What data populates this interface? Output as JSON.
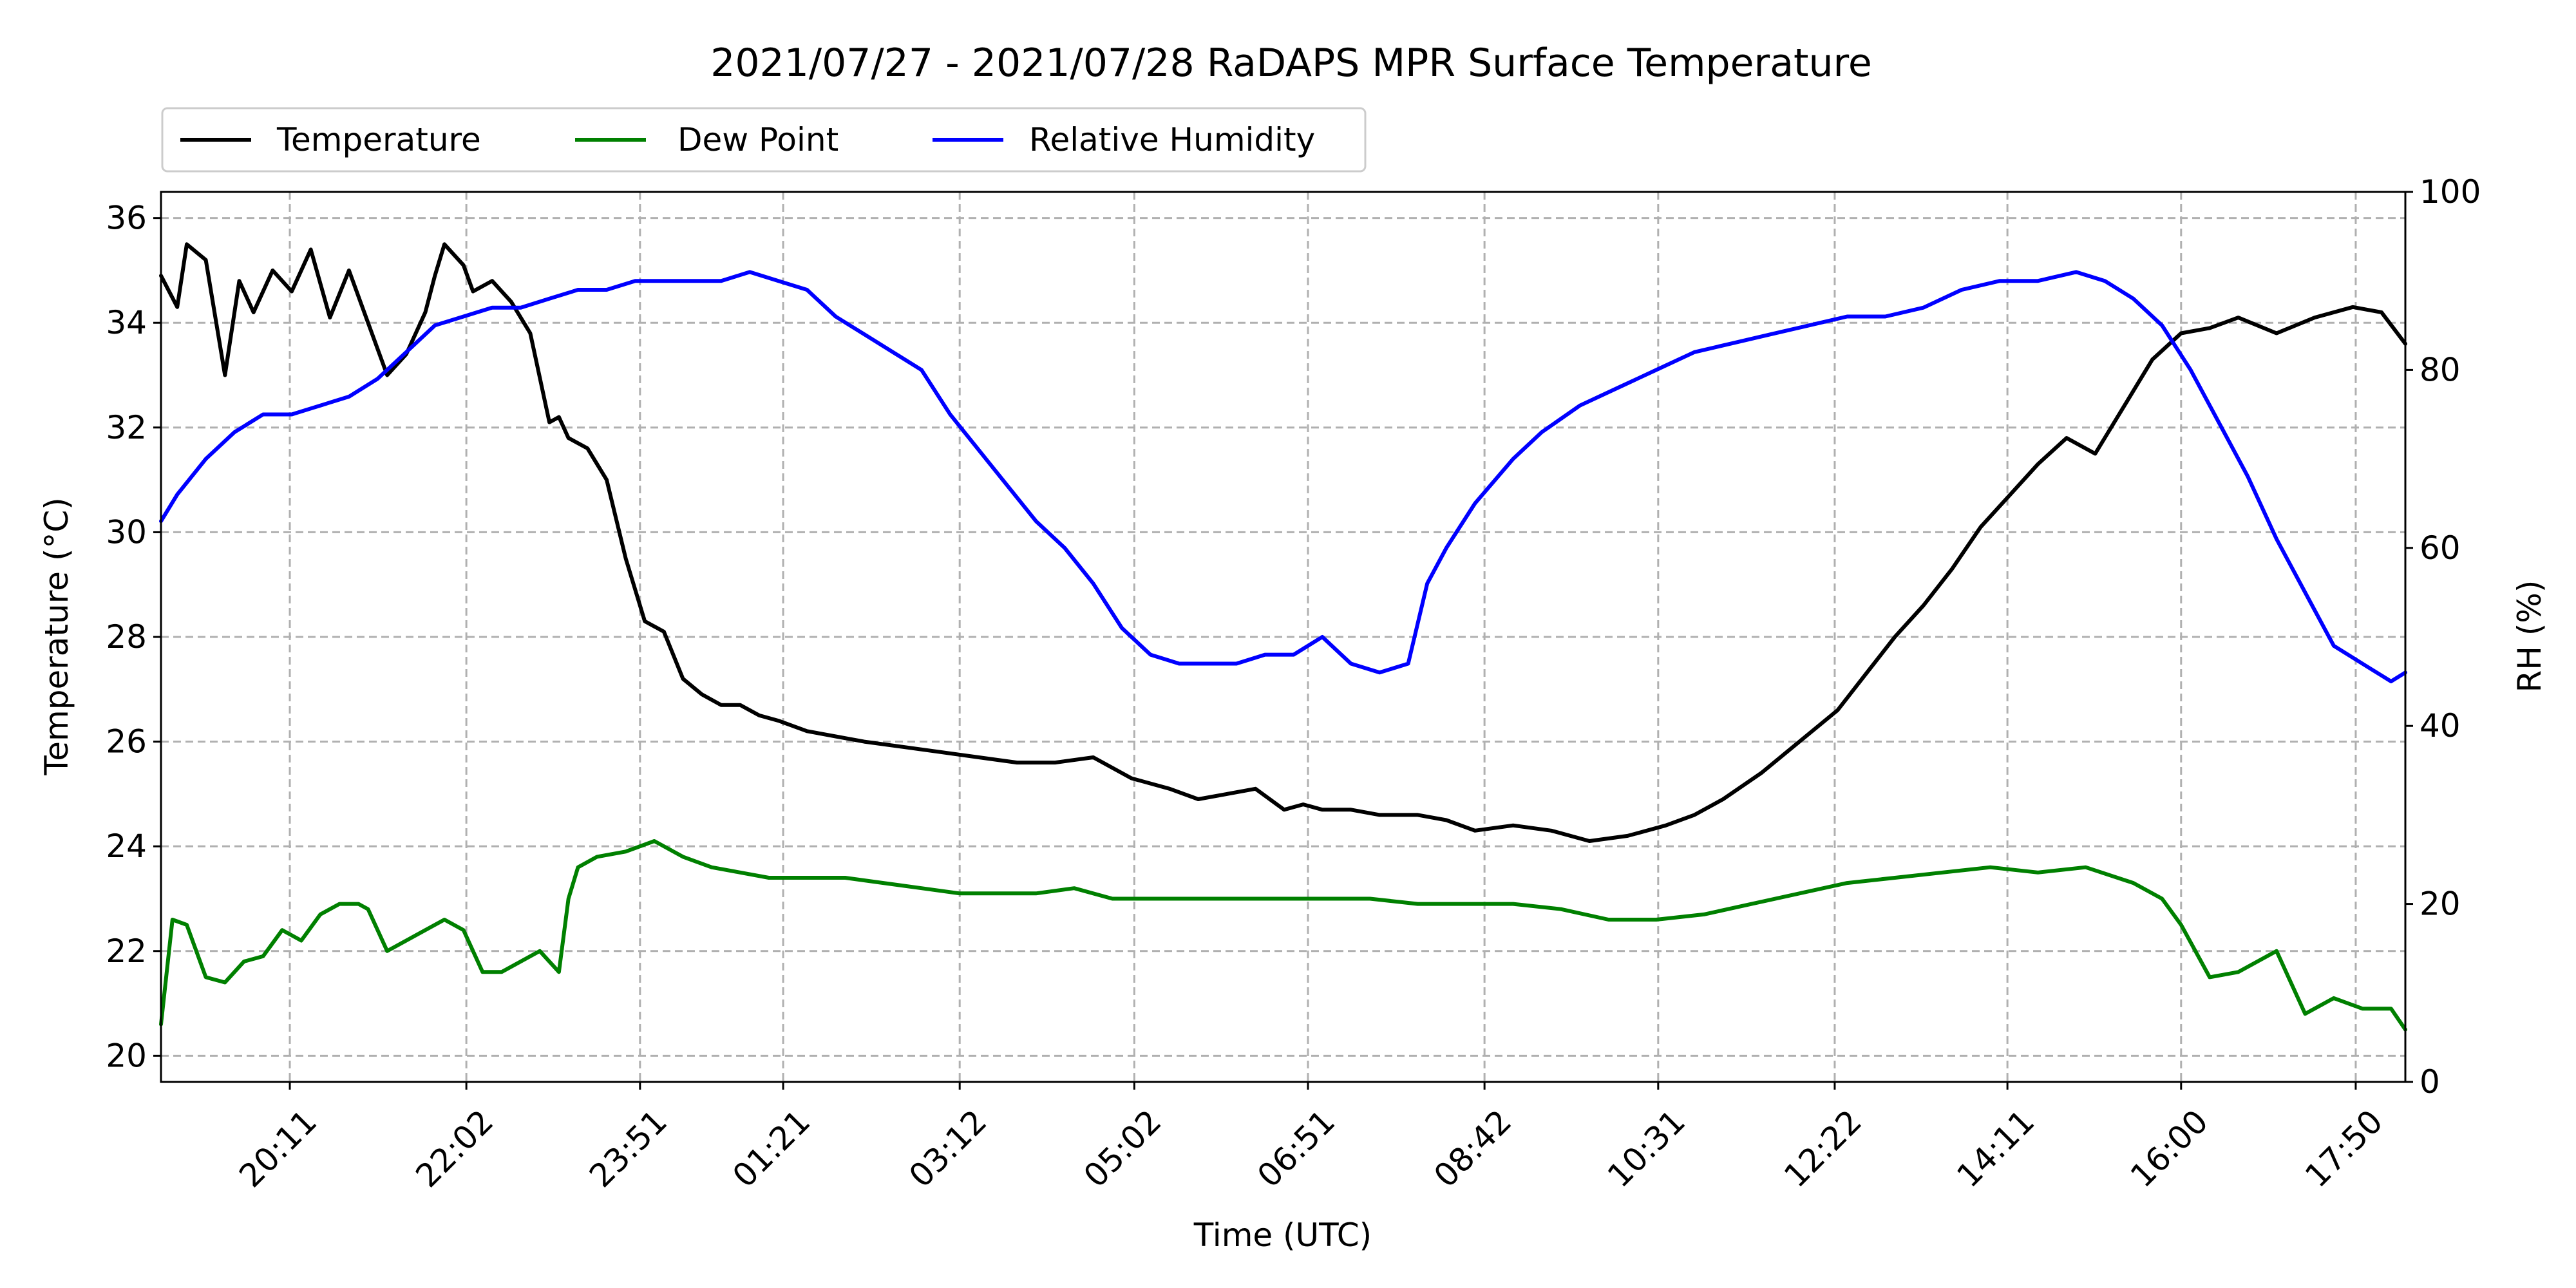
{
  "chart_data": {
    "type": "line",
    "title": "2021/07/27 - 2021/07/28 RaDAPS MPR Surface Temperature",
    "xlabel": "Time (UTC)",
    "ylabel": "Temperature ($^\\circ$C)",
    "ylabel_display": "Temperature (°C)",
    "y2label": "RH (%)",
    "x_tick_labels": [
      "20:11",
      "22:02",
      "23:51",
      "01:21",
      "03:12",
      "05:02",
      "06:51",
      "08:42",
      "10:31",
      "12:22",
      "14:11",
      "16:00",
      "17:50"
    ],
    "x_tick_hours": [
      20.18,
      22.03,
      23.85,
      25.35,
      27.2,
      29.03,
      30.85,
      32.7,
      34.52,
      36.37,
      38.18,
      40.0,
      41.83
    ],
    "xlim_hours": [
      18.83,
      42.35
    ],
    "ylim": [
      19.5,
      36.5
    ],
    "yticks": [
      20,
      22,
      24,
      26,
      28,
      30,
      32,
      34,
      36
    ],
    "y2lim": [
      0,
      100
    ],
    "y2ticks": [
      0,
      20,
      40,
      60,
      80,
      100
    ],
    "grid": true,
    "legend_placement": "top-left, above plot",
    "series": [
      {
        "name": "Temperature",
        "axis": "left",
        "color": "#000000",
        "x_hours": [
          18.83,
          19.0,
          19.1,
          19.3,
          19.5,
          19.65,
          19.8,
          20.0,
          20.2,
          20.4,
          20.6,
          20.8,
          21.0,
          21.2,
          21.4,
          21.6,
          21.7,
          21.8,
          22.0,
          22.1,
          22.3,
          22.5,
          22.7,
          22.9,
          23.0,
          23.1,
          23.3,
          23.5,
          23.7,
          23.9,
          24.1,
          24.3,
          24.5,
          24.7,
          24.9,
          25.1,
          25.3,
          25.6,
          25.9,
          26.2,
          26.6,
          27.0,
          27.4,
          27.8,
          28.2,
          28.6,
          29.0,
          29.4,
          29.7,
          30.0,
          30.3,
          30.6,
          30.8,
          31.0,
          31.3,
          31.6,
          32.0,
          32.3,
          32.6,
          33.0,
          33.4,
          33.8,
          34.2,
          34.6,
          34.9,
          35.2,
          35.6,
          36.0,
          36.4,
          36.7,
          37.0,
          37.3,
          37.6,
          37.9,
          38.2,
          38.5,
          38.8,
          39.1,
          39.4,
          39.7,
          40.0,
          40.3,
          40.6,
          41.0,
          41.4,
          41.8,
          42.1,
          42.35
        ],
        "values": [
          34.9,
          34.3,
          35.5,
          35.2,
          33.0,
          34.8,
          34.2,
          35.0,
          34.6,
          35.4,
          34.1,
          35.0,
          34.0,
          33.0,
          33.4,
          34.2,
          34.9,
          35.5,
          35.1,
          34.6,
          34.8,
          34.4,
          33.8,
          32.1,
          32.2,
          31.8,
          31.6,
          31.0,
          29.5,
          28.3,
          28.1,
          27.2,
          26.9,
          26.7,
          26.7,
          26.5,
          26.4,
          26.2,
          26.1,
          26.0,
          25.9,
          25.8,
          25.7,
          25.6,
          25.6,
          25.7,
          25.3,
          25.1,
          24.9,
          25.0,
          25.1,
          24.7,
          24.8,
          24.7,
          24.7,
          24.6,
          24.6,
          24.5,
          24.3,
          24.4,
          24.3,
          24.1,
          24.2,
          24.4,
          24.6,
          24.9,
          25.4,
          26.0,
          26.6,
          27.3,
          28.0,
          28.6,
          29.3,
          30.1,
          30.7,
          31.3,
          31.8,
          31.5,
          32.4,
          33.3,
          33.8,
          33.9,
          34.1,
          33.8,
          34.1,
          34.3,
          34.2,
          33.6
        ]
      },
      {
        "name": "Dew Point",
        "axis": "left",
        "color": "#008000",
        "x_hours": [
          18.83,
          18.95,
          19.1,
          19.3,
          19.5,
          19.7,
          19.9,
          20.1,
          20.3,
          20.5,
          20.7,
          20.9,
          21.0,
          21.2,
          21.4,
          21.6,
          21.8,
          22.0,
          22.2,
          22.4,
          22.6,
          22.8,
          23.0,
          23.1,
          23.2,
          23.4,
          23.7,
          24.0,
          24.3,
          24.6,
          24.9,
          25.2,
          25.6,
          26.0,
          26.4,
          26.8,
          27.2,
          27.6,
          28.0,
          28.4,
          28.8,
          29.2,
          29.6,
          30.0,
          30.5,
          31.0,
          31.5,
          32.0,
          32.5,
          33.0,
          33.5,
          34.0,
          34.5,
          35.0,
          35.5,
          36.0,
          36.5,
          37.0,
          37.5,
          38.0,
          38.5,
          39.0,
          39.5,
          39.8,
          40.0,
          40.3,
          40.6,
          41.0,
          41.3,
          41.6,
          41.9,
          42.2,
          42.35
        ],
        "values": [
          20.6,
          22.6,
          22.5,
          21.5,
          21.4,
          21.8,
          21.9,
          22.4,
          22.2,
          22.7,
          22.9,
          22.9,
          22.8,
          22.0,
          22.2,
          22.4,
          22.6,
          22.4,
          21.6,
          21.6,
          21.8,
          22.0,
          21.6,
          23.0,
          23.6,
          23.8,
          23.9,
          24.1,
          23.8,
          23.6,
          23.5,
          23.4,
          23.4,
          23.4,
          23.3,
          23.2,
          23.1,
          23.1,
          23.1,
          23.2,
          23.0,
          23.0,
          23.0,
          23.0,
          23.0,
          23.0,
          23.0,
          22.9,
          22.9,
          22.9,
          22.8,
          22.6,
          22.6,
          22.7,
          22.9,
          23.1,
          23.3,
          23.4,
          23.5,
          23.6,
          23.5,
          23.6,
          23.3,
          23.0,
          22.5,
          21.5,
          21.6,
          22.0,
          20.8,
          21.1,
          20.9,
          20.9,
          20.5
        ]
      },
      {
        "name": "Relative Humidity",
        "axis": "right",
        "color": "#0000ff",
        "x_hours": [
          18.83,
          19.0,
          19.3,
          19.6,
          19.9,
          20.2,
          20.5,
          20.8,
          21.1,
          21.4,
          21.7,
          22.0,
          22.3,
          22.6,
          22.9,
          23.2,
          23.5,
          23.8,
          24.1,
          24.4,
          24.7,
          25.0,
          25.3,
          25.6,
          25.9,
          26.2,
          26.5,
          26.8,
          27.1,
          27.4,
          27.7,
          28.0,
          28.3,
          28.6,
          28.9,
          29.2,
          29.5,
          29.8,
          30.1,
          30.4,
          30.7,
          31.0,
          31.3,
          31.6,
          31.9,
          32.1,
          32.3,
          32.6,
          33.0,
          33.3,
          33.7,
          34.1,
          34.5,
          34.9,
          35.3,
          35.7,
          36.1,
          36.5,
          36.9,
          37.3,
          37.7,
          38.1,
          38.5,
          38.9,
          39.2,
          39.5,
          39.8,
          40.1,
          40.4,
          40.7,
          41.0,
          41.3,
          41.6,
          41.9,
          42.2,
          42.35
        ],
        "values": [
          63,
          66,
          70,
          73,
          75,
          75,
          76,
          77,
          79,
          82,
          85,
          86,
          87,
          87,
          88,
          89,
          89,
          90,
          90,
          90,
          90,
          91,
          90,
          89,
          86,
          84,
          82,
          80,
          75,
          71,
          67,
          63,
          60,
          56,
          51,
          48,
          47,
          47,
          47,
          48,
          48,
          50,
          47,
          46,
          47,
          56,
          60,
          65,
          70,
          73,
          76,
          78,
          80,
          82,
          83,
          84,
          85,
          86,
          86,
          87,
          89,
          90,
          90,
          91,
          90,
          88,
          85,
          80,
          74,
          68,
          61,
          55,
          49,
          47,
          45,
          46
        ]
      }
    ]
  }
}
